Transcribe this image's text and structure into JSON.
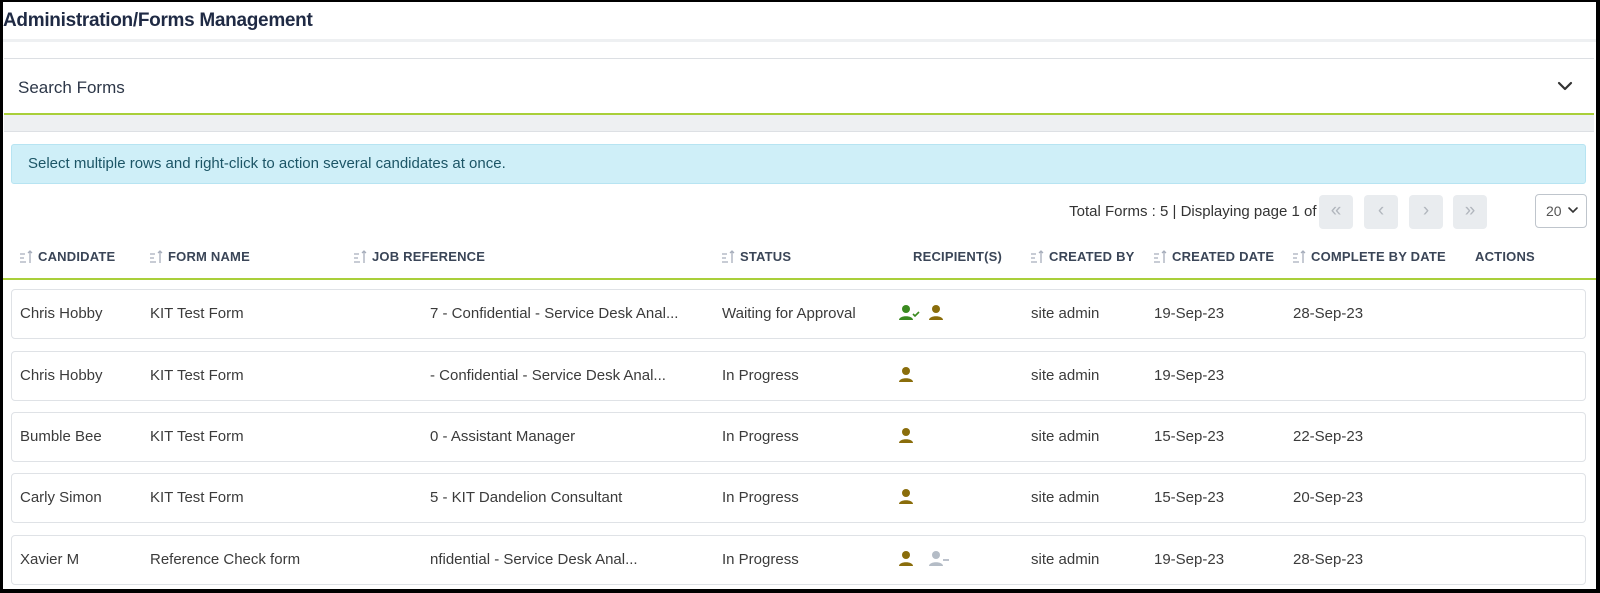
{
  "page": {
    "title": "Administration/Forms Management"
  },
  "search": {
    "title": "Search Forms",
    "icon": "chevron-down-icon"
  },
  "info": {
    "text": "Select multiple rows and right-click to action several candidates at once."
  },
  "pager": {
    "info": "Total Forms : 5 | Displaying page 1 of 1",
    "first": "«",
    "prev": "‹",
    "next": "›",
    "last": "»",
    "page_size": "20"
  },
  "table": {
    "headers": {
      "candidate": "CANDIDATE",
      "form_name": "FORM NAME",
      "job_reference": "JOB REFERENCE",
      "status": "STATUS",
      "recipients": "RECIPIENT(S)",
      "created_by": "CREATED BY",
      "created_date": "CREATED DATE",
      "complete_by_date": "COMPLETE BY DATE",
      "actions": "ACTIONS"
    },
    "rows": [
      {
        "candidate": "Chris Hobby",
        "form_name": "KIT Test Form",
        "job_reference": "7 - Confidential - Service Desk Anal...",
        "status": "Waiting for Approval",
        "recipients": [
          "person-check-icon",
          "person-icon"
        ],
        "created_by": "site admin",
        "created_date": "19-Sep-23",
        "complete_by_date": "28-Sep-23"
      },
      {
        "candidate": "Chris Hobby",
        "form_name": "KIT Test Form",
        "job_reference": "- Confidential - Service Desk Anal...",
        "status": "In Progress",
        "recipients": [
          "person-icon"
        ],
        "created_by": "site admin",
        "created_date": "19-Sep-23",
        "complete_by_date": ""
      },
      {
        "candidate": "Bumble Bee",
        "form_name": "KIT Test Form",
        "job_reference": "0 - Assistant Manager",
        "status": "In Progress",
        "recipients": [
          "person-icon"
        ],
        "created_by": "site admin",
        "created_date": "15-Sep-23",
        "complete_by_date": "22-Sep-23"
      },
      {
        "candidate": "Carly Simon",
        "form_name": "KIT Test Form",
        "job_reference": "5 - KIT Dandelion Consultant",
        "status": "In Progress",
        "recipients": [
          "person-icon"
        ],
        "created_by": "site admin",
        "created_date": "15-Sep-23",
        "complete_by_date": "20-Sep-23"
      },
      {
        "candidate": "Xavier M",
        "form_name": "Reference Check form",
        "job_reference": "nfidential - Service Desk Anal...",
        "status": "In Progress",
        "recipients": [
          "person-icon",
          "person-minus-icon"
        ],
        "created_by": "site admin",
        "created_date": "19-Sep-23",
        "complete_by_date": "28-Sep-23"
      }
    ]
  },
  "colors": {
    "accent": "#a9cf3a",
    "info_bg": "#cfeff8",
    "recipient_primary": "#8a6d0b",
    "recipient_done": "#3a8a1f",
    "recipient_inactive": "#b4bcc6"
  }
}
